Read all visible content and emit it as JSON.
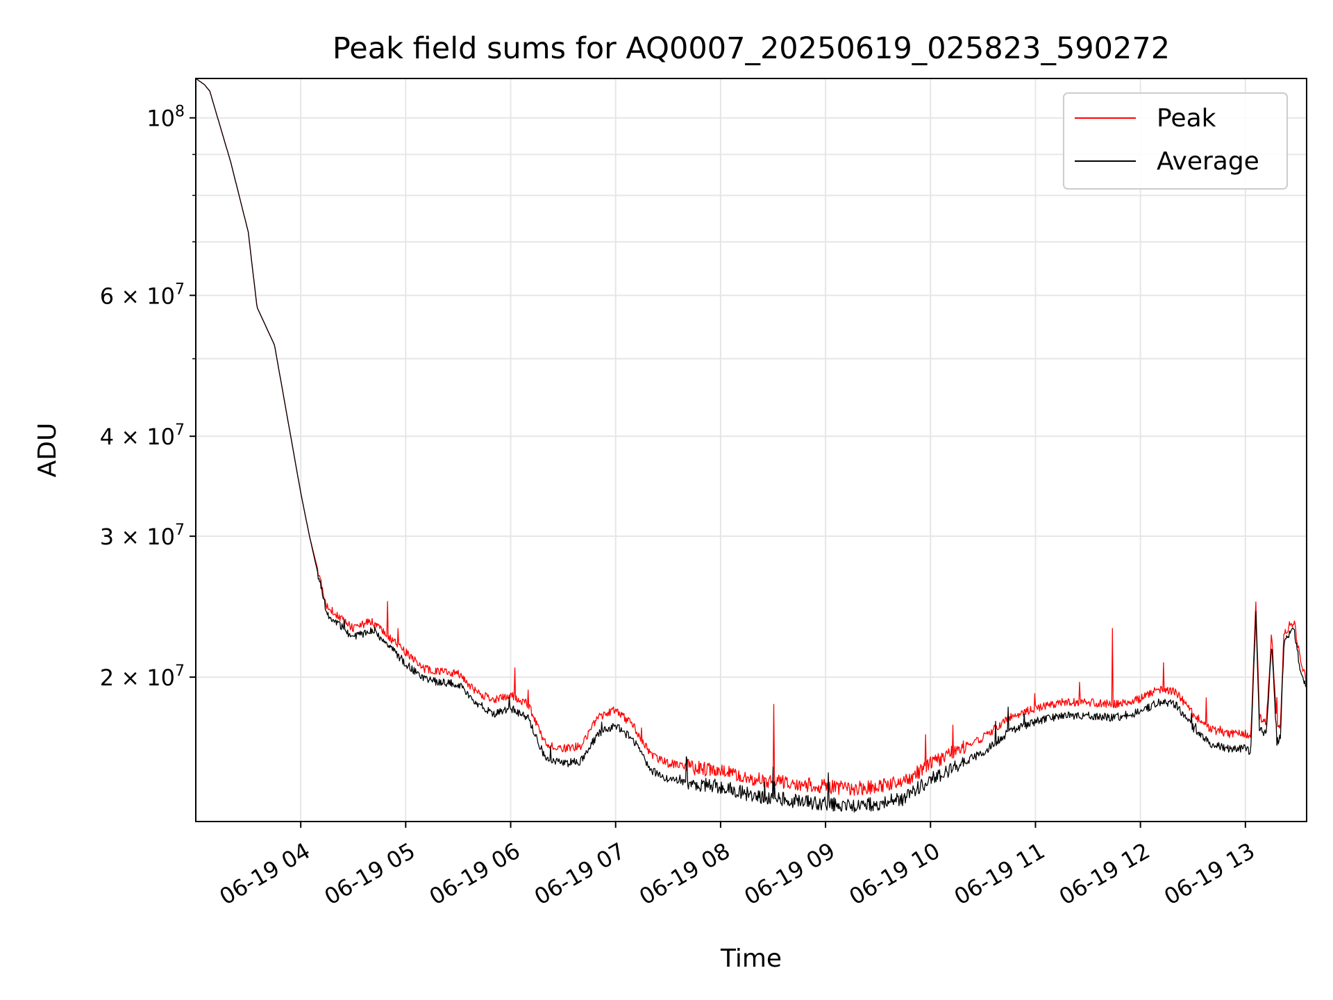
{
  "chart_data": {
    "type": "line",
    "title": "Peak field sums for AQ0007_20250619_025823_590272",
    "xlabel": "Time",
    "ylabel": "ADU",
    "yscale": "log",
    "xlim": [
      "2025-06-19 03:00",
      "2025-06-19 13:35"
    ],
    "ylim": [
      13200000,
      112000000
    ],
    "grid": true,
    "legend": "upper right",
    "x_tick_labels": [
      "06-19 04",
      "06-19 05",
      "06-19 06",
      "06-19 07",
      "06-19 08",
      "06-19 09",
      "06-19 10",
      "06-19 11",
      "06-19 12",
      "06-19 13"
    ],
    "y_tick_labels": [
      {
        "value": 100000000,
        "base": "10",
        "exp": "8"
      },
      {
        "value": 60000000,
        "base": "6 × 10",
        "exp": "7"
      },
      {
        "value": 40000000,
        "base": "4 × 10",
        "exp": "7"
      },
      {
        "value": 30000000,
        "base": "3 × 10",
        "exp": "7"
      },
      {
        "value": 20000000,
        "base": "2 × 10",
        "exp": "7"
      }
    ],
    "series": [
      {
        "name": "Peak",
        "color": "#ff0000",
        "x": [
          "03:00",
          "03:05",
          "03:08",
          "03:20",
          "03:30",
          "03:35",
          "03:45",
          "04:00",
          "04:05",
          "04:15",
          "04:30",
          "04:40",
          "04:50",
          "05:00",
          "05:10",
          "05:20",
          "05:30",
          "05:40",
          "05:50",
          "06:00",
          "06:10",
          "06:20",
          "06:30",
          "06:40",
          "06:50",
          "07:00",
          "07:10",
          "07:20",
          "07:30",
          "07:45",
          "08:00",
          "08:15",
          "08:30",
          "08:45",
          "09:00",
          "09:15",
          "09:30",
          "09:45",
          "10:00",
          "10:15",
          "10:30",
          "10:45",
          "11:00",
          "11:15",
          "11:30",
          "11:45",
          "12:00",
          "12:10",
          "12:20",
          "12:30",
          "12:40",
          "12:50",
          "13:00",
          "13:03",
          "13:06",
          "13:08",
          "13:12",
          "13:15",
          "13:18",
          "13:20",
          "13:22",
          "13:25",
          "13:28",
          "13:31",
          "13:35"
        ],
        "values": [
          112000000,
          110000000,
          108000000,
          88000000,
          72000000,
          58000000,
          52000000,
          34000000,
          30000000,
          24500000,
          23000000,
          23500000,
          22500000,
          21500000,
          20500000,
          20300000,
          20200000,
          19200000,
          18700000,
          19000000,
          18500000,
          16500000,
          16300000,
          16400000,
          17800000,
          18200000,
          17400000,
          16000000,
          15600000,
          15400000,
          15300000,
          15000000,
          14800000,
          14700000,
          14600000,
          14500000,
          14600000,
          14800000,
          15600000,
          16200000,
          16800000,
          17800000,
          18300000,
          18600000,
          18600000,
          18500000,
          18800000,
          19300000,
          19200000,
          18000000,
          17200000,
          17000000,
          17000000,
          16800000,
          24800000,
          17800000,
          17600000,
          22800000,
          17200000,
          17400000,
          22500000,
          23200000,
          23400000,
          21200000,
          19800000
        ]
      },
      {
        "name": "Average",
        "color": "#000000",
        "x": [
          "03:00",
          "03:05",
          "03:08",
          "03:20",
          "03:30",
          "03:35",
          "03:45",
          "04:00",
          "04:05",
          "04:15",
          "04:30",
          "04:40",
          "04:50",
          "05:00",
          "05:10",
          "05:20",
          "05:30",
          "05:40",
          "05:50",
          "06:00",
          "06:10",
          "06:20",
          "06:30",
          "06:40",
          "06:50",
          "07:00",
          "07:10",
          "07:20",
          "07:30",
          "07:45",
          "08:00",
          "08:15",
          "08:30",
          "08:45",
          "09:00",
          "09:15",
          "09:30",
          "09:45",
          "10:00",
          "10:15",
          "10:30",
          "10:45",
          "11:00",
          "11:15",
          "11:30",
          "11:45",
          "12:00",
          "12:10",
          "12:20",
          "12:30",
          "12:40",
          "12:50",
          "13:00",
          "13:03",
          "13:06",
          "13:08",
          "13:12",
          "13:15",
          "13:18",
          "13:20",
          "13:22",
          "13:25",
          "13:28",
          "13:31",
          "13:35"
        ],
        "values": [
          112000000,
          110000000,
          108000000,
          88000000,
          72000000,
          58000000,
          52000000,
          34000000,
          30000000,
          24000000,
          22400000,
          22900000,
          21900000,
          20800000,
          19900000,
          19700000,
          19600000,
          18600000,
          18000000,
          18300000,
          17800000,
          15800000,
          15600000,
          15700000,
          17000000,
          17400000,
          16700000,
          15300000,
          14900000,
          14700000,
          14600000,
          14300000,
          14100000,
          14000000,
          13900000,
          13800000,
          13900000,
          14100000,
          14900000,
          15500000,
          16100000,
          17100000,
          17600000,
          17900000,
          17900000,
          17800000,
          18100000,
          18600000,
          18500000,
          17300000,
          16500000,
          16300000,
          16300000,
          16100000,
          24300000,
          17200000,
          17000000,
          22300000,
          16600000,
          16800000,
          22000000,
          22700000,
          22900000,
          20700000,
          19300000
        ]
      }
    ]
  }
}
